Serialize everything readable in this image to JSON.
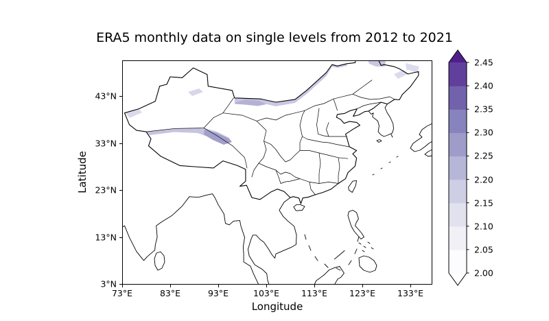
{
  "chart_data": {
    "type": "heatmap",
    "subtype": "geographic filled-contour map with coastlines and province borders",
    "title": "ERA5 monthly data on single levels from 2012 to 2021",
    "xlabel": "Longitude",
    "ylabel": "Latitude",
    "x_ticks": [
      "73°E",
      "83°E",
      "93°E",
      "103°E",
      "113°E",
      "123°E",
      "133°E"
    ],
    "y_ticks": [
      "43°N",
      "33°N",
      "23°N",
      "13°N",
      "3°N"
    ],
    "map_extent": {
      "lon_min_deg_e": 73,
      "lon_max_deg_e": 137.5,
      "lat_min_deg_n": 3,
      "lat_max_deg_n": 50.7
    },
    "region_shown": "China with province boundaries, plus surrounding coastlines (India, Sri Lanka, Indochina, Malay peninsula, Korea, Japan edge, Taiwan, Hainan, Philippines, Borneo) and dashed maritime line in South China Sea",
    "grid": false,
    "legend_position": "colorbar-right",
    "colorbar": {
      "colormap": "Purples",
      "extend": "both",
      "levels": [
        2.0,
        2.05,
        2.1,
        2.15,
        2.2,
        2.25,
        2.3,
        2.35,
        2.4,
        2.45
      ],
      "tick_labels": [
        "2.00",
        "2.05",
        "2.10",
        "2.15",
        "2.20",
        "2.25",
        "2.30",
        "2.35",
        "2.40",
        "2.45"
      ],
      "segment_colors_low_to_high": [
        "#fcfbfd",
        "#f1f0f7",
        "#e2e2ef",
        "#cecfe5",
        "#b6b7d8",
        "#9e9dc9",
        "#8683bd",
        "#7262ab",
        "#61409b"
      ],
      "under_arrow_color": "#ffffff",
      "over_arrow_color": "#501f8c"
    },
    "shaded_regions_observed": [
      {
        "area": "thin band along China-Mongolia-Russia northern border (~93°E-127°E, 43°N-50°N)",
        "approx_value": "2.05-2.20"
      },
      {
        "area": "Kunlun/Tibet band (~78°E-95°E, 32°N-36°N)",
        "approx_value": "2.10-2.30"
      },
      {
        "area": "small patches in far northeast and top edge (~125°E-131°E, 47°N-50°N)",
        "approx_value": "2.05-2.15"
      },
      {
        "area": "remainder of map",
        "approx_value": "below 2.00 (white / under range)"
      }
    ]
  }
}
